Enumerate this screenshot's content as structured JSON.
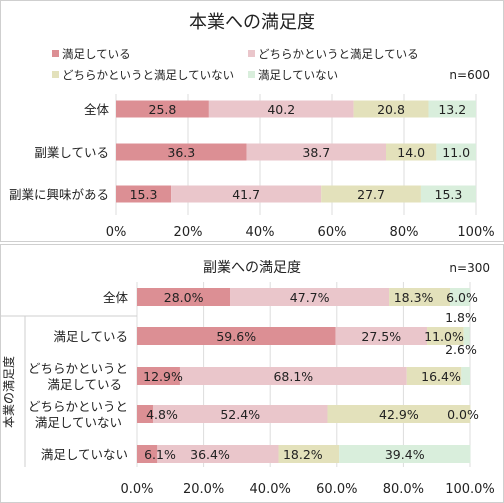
{
  "chart_data": [
    {
      "type": "bar",
      "orientation": "horizontal",
      "stacked": true,
      "title": "本業への満足度",
      "sample_note": "n=600",
      "categories": [
        "全体",
        "副業している",
        "副業に興味がある"
      ],
      "series": [
        {
          "name": "満足している",
          "color": "#dc8f94",
          "values": [
            25.8,
            36.3,
            15.3
          ]
        },
        {
          "name": "どちらかというと満足している",
          "color": "#eac6cb",
          "values": [
            40.2,
            38.7,
            41.7
          ]
        },
        {
          "name": "どちらかというと満足していない",
          "color": "#e3e1bb",
          "values": [
            20.8,
            14.0,
            27.7
          ]
        },
        {
          "name": "満足していない",
          "color": "#d9eedc",
          "values": [
            13.2,
            11.0,
            15.3
          ]
        }
      ],
      "value_labels": [
        [
          "25.8",
          "36.3",
          "15.3"
        ],
        [
          "40.2",
          "38.7",
          "41.7"
        ],
        [
          "20.8",
          "14.0",
          "27.7"
        ],
        [
          "13.2",
          "11.0",
          "15.3"
        ]
      ],
      "xticks": [
        "0%",
        "20%",
        "40%",
        "60%",
        "80%",
        "100%"
      ],
      "xlim": [
        0,
        100
      ],
      "legend_position": "top"
    },
    {
      "type": "bar",
      "orientation": "horizontal",
      "stacked": true,
      "title": "副業への満足度",
      "sample_note": "n=300",
      "row_group_label": "本業の満足度",
      "categories": [
        "全体",
        "満足している",
        "どちらかというと\n満足している",
        "どちらかというと\n満足していない",
        "満足していない"
      ],
      "series": [
        {
          "name": "満足している",
          "color": "#dc8f94",
          "values": [
            28.0,
            59.6,
            12.9,
            4.8,
            6.1
          ]
        },
        {
          "name": "どちらかというと満足している",
          "color": "#eac6cb",
          "values": [
            47.7,
            27.5,
            68.1,
            52.4,
            36.4
          ]
        },
        {
          "name": "どちらかというと満足していない",
          "color": "#e3e1bb",
          "values": [
            18.3,
            11.0,
            16.4,
            42.9,
            18.2
          ]
        },
        {
          "name": "満足していない",
          "color": "#d9eedc",
          "values": [
            6.0,
            1.8,
            2.6,
            0.0,
            39.4
          ]
        }
      ],
      "value_labels": [
        [
          "28.0%",
          "59.6%",
          "12.9%",
          "4.8%",
          "6.1%"
        ],
        [
          "47.7%",
          "27.5%",
          "68.1%",
          "52.4%",
          "36.4%"
        ],
        [
          "18.3%",
          "11.0%",
          "16.4%",
          "42.9%",
          "18.2%"
        ],
        [
          "6.0%",
          "1.8%",
          "2.6%",
          "0.0%",
          "39.4%"
        ]
      ],
      "xticks": [
        "0.0%",
        "20.0%",
        "40.0%",
        "60.0%",
        "80.0%",
        "100.0%"
      ],
      "xlim": [
        0,
        100
      ]
    }
  ]
}
